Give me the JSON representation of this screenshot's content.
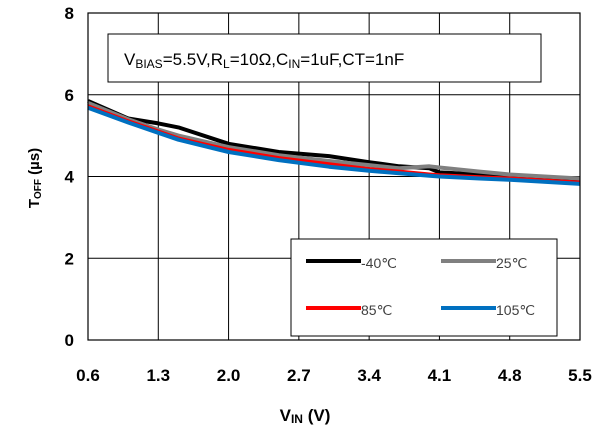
{
  "chart_data": {
    "type": "line",
    "annotation": {
      "parts": [
        {
          "text": "V",
          "sub": false
        },
        {
          "text": "BIAS",
          "sub": true
        },
        {
          "text": "=5.5V,R",
          "sub": false
        },
        {
          "text": "L",
          "sub": true
        },
        {
          "text": "=10Ω,C",
          "sub": false
        },
        {
          "text": "IN",
          "sub": true
        },
        {
          "text": "=1uF,CT=1nF",
          "sub": false
        }
      ]
    },
    "xlabel": {
      "main": "V",
      "sub": "IN",
      "suffix": " (V)"
    },
    "ylabel": {
      "main": "T",
      "sub": "OFF",
      "suffix": " (µs)"
    },
    "xlim": [
      0.6,
      5.5
    ],
    "ylim": [
      0,
      8
    ],
    "x_ticks": [
      "0.6",
      "1.3",
      "2.0",
      "2.7",
      "3.4",
      "4.1",
      "4.8",
      "5.5"
    ],
    "y_ticks": [
      "0",
      "2",
      "4",
      "6",
      "8"
    ],
    "grid": true,
    "legend_position": "bottom-right",
    "series": [
      {
        "name": "-40℃",
        "color": "#000000",
        "x": [
          0.6,
          1.0,
          1.3,
          1.5,
          2.0,
          2.5,
          3.0,
          3.4,
          3.7,
          4.0,
          4.1,
          4.5,
          4.8,
          5.5
        ],
        "y": [
          5.85,
          5.42,
          5.3,
          5.2,
          4.8,
          4.6,
          4.5,
          4.35,
          4.25,
          4.2,
          4.1,
          4.05,
          4.0,
          3.9
        ]
      },
      {
        "name": "25℃",
        "color": "#808080",
        "x": [
          0.6,
          1.0,
          1.3,
          1.5,
          2.0,
          2.5,
          3.0,
          3.4,
          3.7,
          4.0,
          4.1,
          4.5,
          4.8,
          5.5
        ],
        "y": [
          5.8,
          5.4,
          5.15,
          5.0,
          4.72,
          4.52,
          4.38,
          4.28,
          4.2,
          4.25,
          4.22,
          4.12,
          4.05,
          3.95
        ]
      },
      {
        "name": "85℃",
        "color": "#ff0000",
        "x": [
          0.6,
          1.0,
          1.3,
          1.5,
          2.0,
          2.5,
          3.0,
          3.4,
          3.7,
          4.0,
          4.1,
          4.5,
          4.8,
          5.5
        ],
        "y": [
          5.72,
          5.35,
          5.1,
          4.93,
          4.65,
          4.45,
          4.3,
          4.18,
          4.12,
          4.05,
          4.03,
          3.98,
          3.95,
          3.85
        ]
      },
      {
        "name": "105℃",
        "color": "#0070c0",
        "x": [
          0.6,
          1.0,
          1.3,
          1.5,
          2.0,
          2.5,
          3.0,
          3.4,
          3.7,
          4.0,
          4.1,
          4.5,
          4.8,
          5.5
        ],
        "y": [
          5.68,
          5.32,
          5.07,
          4.9,
          4.6,
          4.4,
          4.24,
          4.14,
          4.08,
          4.02,
          4.0,
          3.95,
          3.92,
          3.82
        ]
      }
    ]
  }
}
